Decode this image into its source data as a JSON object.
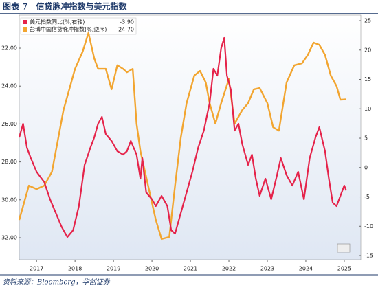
{
  "chart_data": {
    "type": "line",
    "title": "图表 7　信贷脉冲指数与美元指数",
    "source": "资料来源：Bloomberg，华创证券",
    "xlim": [
      2017.05,
      2025.93
    ],
    "xticks": [
      {
        "value": 2017.5,
        "label": "2017"
      },
      {
        "value": 2018.5,
        "label": "2018"
      },
      {
        "value": 2019.5,
        "label": "2019"
      },
      {
        "value": 2020.5,
        "label": "2020"
      },
      {
        "value": 2021.5,
        "label": "2021"
      },
      {
        "value": 2022.5,
        "label": "2022"
      },
      {
        "value": 2023.5,
        "label": "2023"
      },
      {
        "value": 2024.5,
        "label": "2024"
      },
      {
        "value": 2025.5,
        "label": "2025"
      }
    ],
    "ylim": [
      20.26,
      33.16
    ],
    "y_inverted": true,
    "yticks": [
      {
        "value": 22,
        "label": "22.00"
      },
      {
        "value": 24,
        "label": "24.00"
      },
      {
        "value": 26,
        "label": "26.00"
      },
      {
        "value": 28,
        "label": "28.00"
      },
      {
        "value": 30,
        "label": "30.00"
      },
      {
        "value": 32,
        "label": "32.00"
      }
    ],
    "y2lim": [
      -15.7,
      25.94
    ],
    "y2ticks": [
      -15,
      -10,
      -5,
      0,
      5,
      10,
      15,
      20,
      25
    ],
    "series": [
      {
        "name": "美元指数同比(%,右轴)",
        "color": "#e5234a",
        "axis": "y2",
        "latest": -3.9,
        "latest_label": "-3.90",
        "x": [
          2017.05,
          2017.15,
          2017.25,
          2017.35,
          2017.5,
          2017.7,
          2017.85,
          2018.0,
          2018.15,
          2018.3,
          2018.45,
          2018.6,
          2018.75,
          2018.9,
          2019.0,
          2019.1,
          2019.2,
          2019.3,
          2019.45,
          2019.6,
          2019.75,
          2019.85,
          2019.95,
          2020.1,
          2020.2,
          2020.25,
          2020.35,
          2020.5,
          2020.6,
          2020.75,
          2020.9,
          2021.0,
          2021.1,
          2021.25,
          2021.4,
          2021.55,
          2021.7,
          2021.85,
          2022.0,
          2022.1,
          2022.2,
          2022.3,
          2022.38,
          2022.45,
          2022.55,
          2022.65,
          2022.75,
          2022.85,
          2023.0,
          2023.1,
          2023.2,
          2023.3,
          2023.45,
          2023.6,
          2023.75,
          2023.85,
          2024.0,
          2024.15,
          2024.3,
          2024.45,
          2024.6,
          2024.75,
          2024.85,
          2025.0,
          2025.1,
          2025.2,
          2025.3,
          2025.4,
          2025.5,
          2025.55
        ],
        "values": [
          5.12,
          7.46,
          3.37,
          1.61,
          -0.73,
          -2.48,
          -5.41,
          -7.74,
          -10.08,
          -11.84,
          -10.67,
          -6.57,
          0.44,
          3.37,
          5.12,
          7.46,
          8.63,
          5.7,
          4.54,
          2.78,
          2.2,
          2.78,
          4.54,
          2.2,
          -1.9,
          1.61,
          -4.24,
          -5.41,
          -6.57,
          -4.82,
          -6.57,
          -10.67,
          -11.25,
          -7.74,
          -4.24,
          -0.73,
          3.37,
          6.29,
          10.97,
          16.82,
          15.65,
          20.33,
          22.08,
          15.65,
          13.31,
          6.29,
          7.46,
          3.95,
          0.44,
          2.2,
          -1.9,
          -4.82,
          -1.9,
          -5.41,
          -1.31,
          1.61,
          -1.31,
          -3.07,
          -0.73,
          -5.41,
          1.61,
          5.12,
          6.88,
          2.78,
          -1.9,
          -6.0,
          -6.57,
          -4.82,
          -3.07,
          -3.9
        ]
      },
      {
        "name": "彭博中国信贷脉冲指数(%,逆序)",
        "color": "#f2a530",
        "axis": "y",
        "latest": 24.7,
        "latest_label": "24.70",
        "x": [
          2017.05,
          2017.3,
          2017.5,
          2017.7,
          2017.9,
          2018.2,
          2018.5,
          2018.7,
          2018.85,
          2019.0,
          2019.1,
          2019.3,
          2019.45,
          2019.6,
          2019.75,
          2019.85,
          2020.0,
          2020.1,
          2020.2,
          2020.4,
          2020.6,
          2020.75,
          2020.95,
          2021.1,
          2021.25,
          2021.4,
          2021.6,
          2021.75,
          2021.9,
          2022.0,
          2022.15,
          2022.3,
          2022.5,
          2022.65,
          2022.85,
          2023.0,
          2023.15,
          2023.3,
          2023.5,
          2023.65,
          2023.8,
          2024.0,
          2024.2,
          2024.4,
          2024.55,
          2024.7,
          2024.85,
          2025.0,
          2025.15,
          2025.3,
          2025.4,
          2025.55
        ],
        "values": [
          31.06,
          29.25,
          29.43,
          29.25,
          28.52,
          25.26,
          23.09,
          22.18,
          21.2,
          22.54,
          23.09,
          23.09,
          24.17,
          22.9,
          23.09,
          23.27,
          23.09,
          25.98,
          27.43,
          29.25,
          31.06,
          32.07,
          31.96,
          29.25,
          26.71,
          24.9,
          23.45,
          23.2,
          23.81,
          24.9,
          25.98,
          24.9,
          23.63,
          25.98,
          25.26,
          24.9,
          24.17,
          24.1,
          24.9,
          26.17,
          26.35,
          23.81,
          22.9,
          22.8,
          22.36,
          21.71,
          21.82,
          22.36,
          23.45,
          24.0,
          24.72,
          24.7
        ]
      }
    ]
  }
}
